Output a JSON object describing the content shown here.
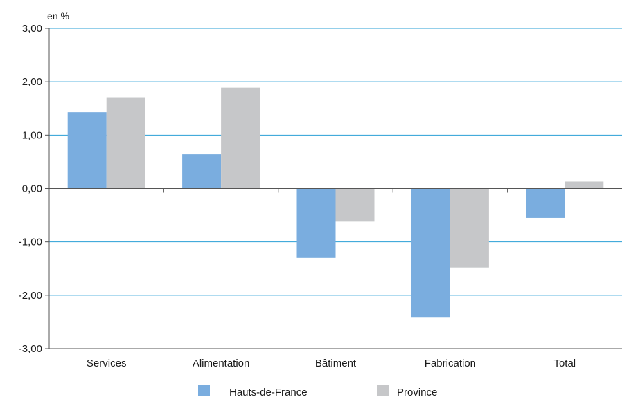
{
  "chart_data": {
    "type": "bar",
    "title": "",
    "xlabel": "",
    "ylabel": "en %",
    "categories": [
      "Services",
      "Alimentation",
      "Bâtiment",
      "Fabrication",
      "Total"
    ],
    "series": [
      {
        "name": "Hauts-de-France",
        "values": [
          1.43,
          0.64,
          -1.3,
          -2.42,
          -0.55
        ],
        "color": "#7aaddf"
      },
      {
        "name": "Province",
        "values": [
          1.71,
          1.89,
          -0.62,
          -1.48,
          0.13
        ],
        "color": "#c6c7c9"
      }
    ],
    "ylim": [
      -3,
      3
    ],
    "yticks": [
      3,
      2,
      1,
      0,
      -1,
      -2,
      -3
    ],
    "ytick_labels": [
      "3,00",
      "2,00",
      "1,00",
      "0,00",
      "-1,00",
      "-2,00",
      "-3,00"
    ],
    "grid": true,
    "grid_color": "#2a9fd6",
    "legend_position": "bottom"
  }
}
